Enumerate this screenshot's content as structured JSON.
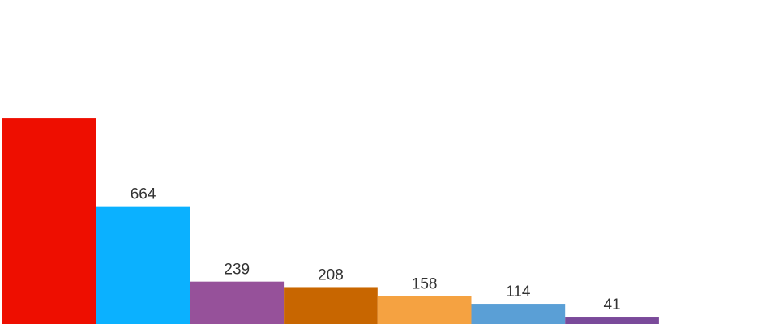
{
  "chart_data": {
    "type": "bar",
    "title": "",
    "xlabel": "",
    "ylabel": "",
    "grid": false,
    "legend": "none",
    "ylim": [
      0,
      1200
    ],
    "value_labels_visible": [
      "",
      "664",
      "239",
      "208",
      "158",
      "114",
      "41"
    ],
    "series": [
      {
        "values": [
          1160,
          664,
          239,
          208,
          158,
          114,
          41
        ],
        "colors": [
          "#ee0e00",
          "#0bb1ff",
          "#96519a",
          "#c86600",
          "#f5a241",
          "#5a9fd6",
          "#7a4a9a"
        ]
      }
    ]
  }
}
